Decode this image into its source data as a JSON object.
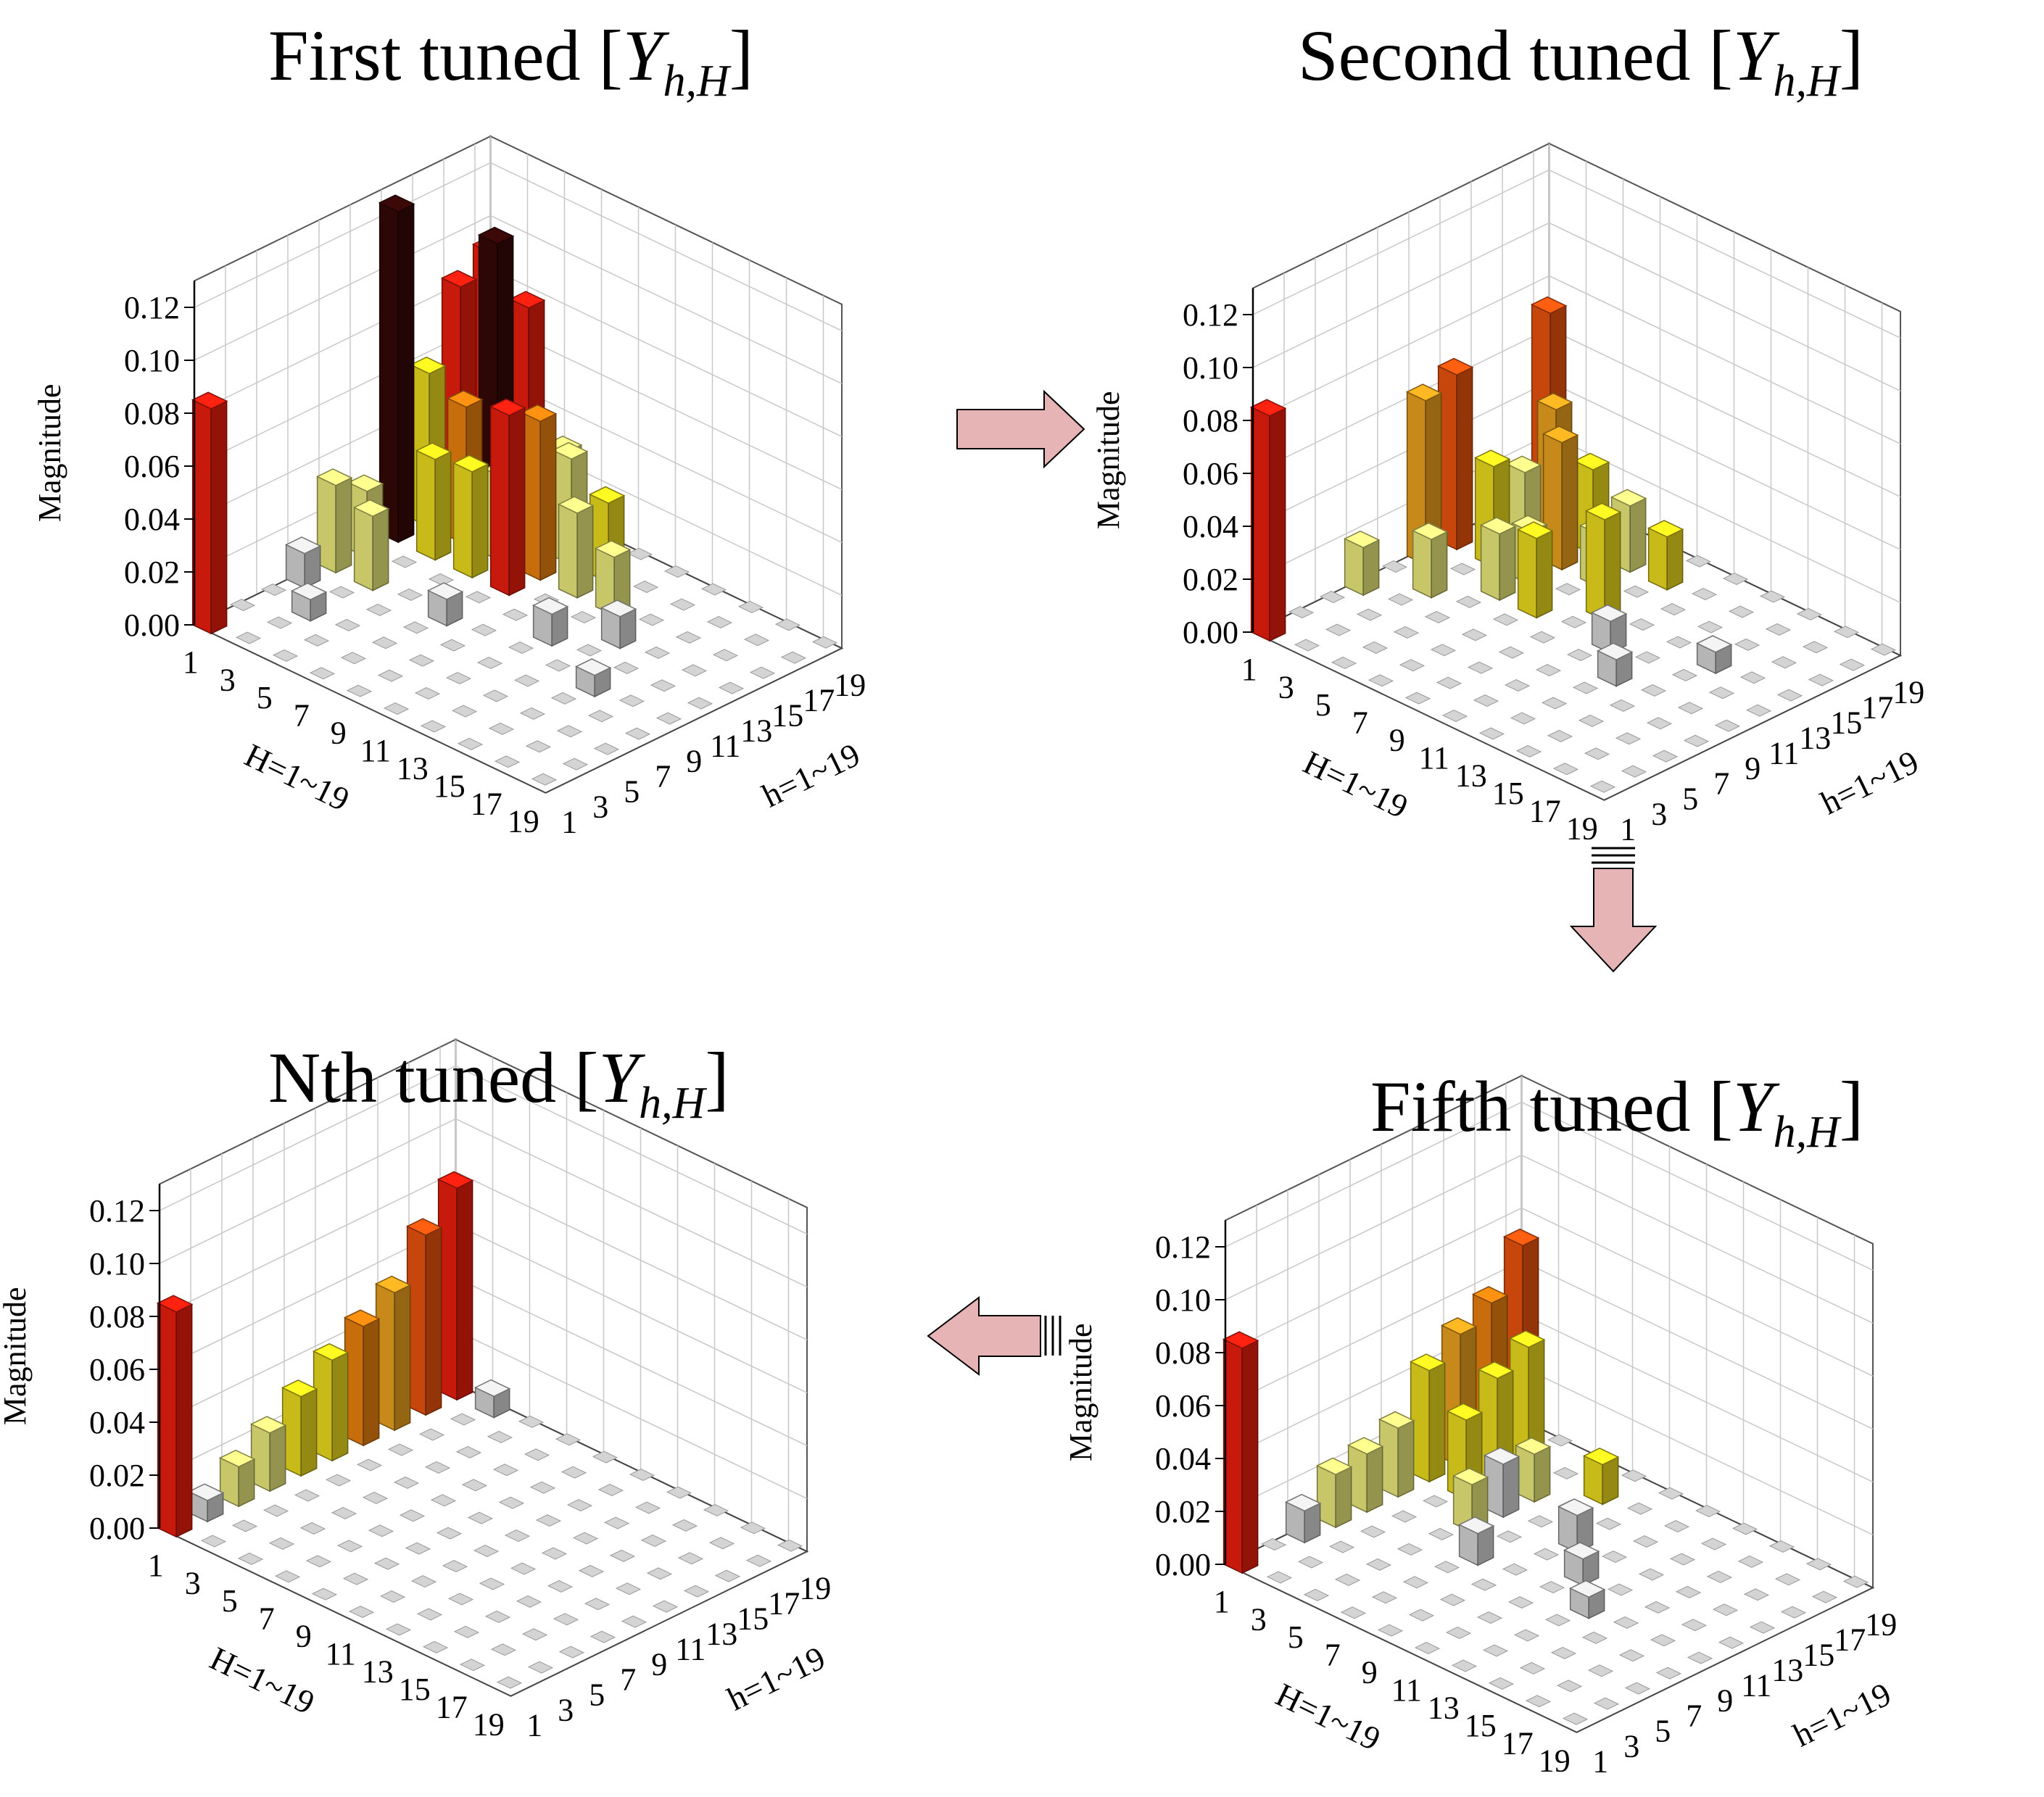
{
  "figure": {
    "description_note": "Four 3D bar charts of harmonic cross-coupling admittance magnitudes across tuning iterations",
    "arrows": [
      {
        "name": "first-to-second",
        "direction": "right"
      },
      {
        "name": "second-to-fifth",
        "direction": "down"
      },
      {
        "name": "fifth-to-nth",
        "direction": "left"
      }
    ],
    "colors": {
      "red": "#ff2010",
      "dark": "#3a0808",
      "orange": "#ff8c10",
      "orange_red": "#ff5a10",
      "amber": "#ffb020",
      "yellow": "#ffee20",
      "light_yellow": "#ffff88",
      "gray": "#e8e8e8"
    }
  },
  "chart_data": [
    {
      "id": "first",
      "type": "bar3d",
      "title_main": "First tuned [",
      "title_var": "Y",
      "title_sub": "h,H",
      "title_close": "]",
      "zlabel": "Magnitude",
      "xlabel": "H=1~19",
      "ylabel": "h=1~19",
      "zlim": [
        0,
        0.13
      ],
      "zticks": [
        "0.00",
        "0.02",
        "0.04",
        "0.06",
        "0.08",
        "0.10",
        "0.12"
      ],
      "xticks": [
        "1",
        "3",
        "5",
        "7",
        "9",
        "11",
        "13",
        "15",
        "17",
        "19"
      ],
      "yticks": [
        "1",
        "3",
        "5",
        "7",
        "9",
        "11",
        "13",
        "15",
        "17",
        "19"
      ],
      "bars": [
        {
          "H": 1,
          "h": 1,
          "value": 0.085,
          "color": "red"
        },
        {
          "H": 1,
          "h": 7,
          "value": 0.013,
          "color": "gray"
        },
        {
          "H": 1,
          "h": 9,
          "value": 0.033,
          "color": "light_yellow"
        },
        {
          "H": 1,
          "h": 11,
          "value": 0.025,
          "color": "light_yellow"
        },
        {
          "H": 1,
          "h": 13,
          "value": 0.125,
          "color": "dark"
        },
        {
          "H": 1,
          "h": 15,
          "value": 0.058,
          "color": "yellow"
        },
        {
          "H": 1,
          "h": 17,
          "value": 0.085,
          "color": "red"
        },
        {
          "H": 1,
          "h": 19,
          "value": 0.092,
          "color": "red"
        },
        {
          "H": 3,
          "h": 5,
          "value": 0.008,
          "color": "gray"
        },
        {
          "H": 3,
          "h": 9,
          "value": 0.028,
          "color": "light_yellow"
        },
        {
          "H": 3,
          "h": 13,
          "value": 0.038,
          "color": "yellow"
        },
        {
          "H": 3,
          "h": 15,
          "value": 0.052,
          "color": "orange"
        },
        {
          "H": 3,
          "h": 17,
          "value": 0.108,
          "color": "dark"
        },
        {
          "H": 3,
          "h": 19,
          "value": 0.078,
          "color": "red"
        },
        {
          "H": 5,
          "h": 13,
          "value": 0.04,
          "color": "yellow"
        },
        {
          "H": 5,
          "h": 15,
          "value": 0.032,
          "color": "light_yellow"
        },
        {
          "H": 5,
          "h": 17,
          "value": 0.028,
          "color": "light_yellow"
        },
        {
          "H": 5,
          "h": 19,
          "value": 0.03,
          "color": "light_yellow"
        },
        {
          "H": 7,
          "h": 9,
          "value": 0.01,
          "color": "gray"
        },
        {
          "H": 7,
          "h": 13,
          "value": 0.068,
          "color": "red"
        },
        {
          "H": 7,
          "h": 15,
          "value": 0.06,
          "color": "orange"
        },
        {
          "H": 7,
          "h": 17,
          "value": 0.04,
          "color": "light_yellow"
        },
        {
          "H": 9,
          "h": 15,
          "value": 0.032,
          "color": "light_yellow"
        },
        {
          "H": 9,
          "h": 17,
          "value": 0.03,
          "color": "yellow"
        },
        {
          "H": 11,
          "h": 11,
          "value": 0.012,
          "color": "gray"
        },
        {
          "H": 11,
          "h": 15,
          "value": 0.022,
          "color": "light_yellow"
        },
        {
          "H": 13,
          "h": 13,
          "value": 0.012,
          "color": "gray"
        },
        {
          "H": 15,
          "h": 9,
          "value": 0.008,
          "color": "gray"
        }
      ]
    },
    {
      "id": "second",
      "type": "bar3d",
      "title_main": "Second tuned [",
      "title_var": "Y",
      "title_sub": "h,H",
      "title_close": "]",
      "zlabel": "Magnitude",
      "xlabel": "H=1~19",
      "ylabel": "h=1~19",
      "zlim": [
        0,
        0.13
      ],
      "zticks": [
        "0.00",
        "0.02",
        "0.04",
        "0.06",
        "0.08",
        "0.10",
        "0.12"
      ],
      "xticks": [
        "1",
        "3",
        "5",
        "7",
        "9",
        "11",
        "13",
        "15",
        "17",
        "19"
      ],
      "yticks": [
        "1",
        "3",
        "5",
        "7",
        "9",
        "11",
        "13",
        "15",
        "17",
        "19"
      ],
      "bars": [
        {
          "H": 1,
          "h": 1,
          "value": 0.085,
          "color": "red"
        },
        {
          "H": 1,
          "h": 7,
          "value": 0.018,
          "color": "light_yellow"
        },
        {
          "H": 1,
          "h": 11,
          "value": 0.062,
          "color": "amber"
        },
        {
          "H": 1,
          "h": 13,
          "value": 0.066,
          "color": "orange_red"
        },
        {
          "H": 1,
          "h": 19,
          "value": 0.072,
          "color": "orange_red"
        },
        {
          "H": 3,
          "h": 9,
          "value": 0.022,
          "color": "light_yellow"
        },
        {
          "H": 3,
          "h": 13,
          "value": 0.038,
          "color": "yellow"
        },
        {
          "H": 3,
          "h": 15,
          "value": 0.03,
          "color": "light_yellow"
        },
        {
          "H": 3,
          "h": 17,
          "value": 0.048,
          "color": "amber"
        },
        {
          "H": 5,
          "h": 11,
          "value": 0.025,
          "color": "light_yellow"
        },
        {
          "H": 5,
          "h": 13,
          "value": 0.02,
          "color": "light_yellow"
        },
        {
          "H": 5,
          "h": 15,
          "value": 0.048,
          "color": "amber"
        },
        {
          "H": 5,
          "h": 17,
          "value": 0.032,
          "color": "yellow"
        },
        {
          "H": 7,
          "h": 11,
          "value": 0.03,
          "color": "yellow"
        },
        {
          "H": 7,
          "h": 15,
          "value": 0.02,
          "color": "light_yellow"
        },
        {
          "H": 7,
          "h": 17,
          "value": 0.025,
          "color": "light_yellow"
        },
        {
          "H": 9,
          "h": 13,
          "value": 0.038,
          "color": "yellow"
        },
        {
          "H": 9,
          "h": 17,
          "value": 0.02,
          "color": "yellow"
        },
        {
          "H": 11,
          "h": 11,
          "value": 0.012,
          "color": "gray"
        },
        {
          "H": 13,
          "h": 9,
          "value": 0.01,
          "color": "gray"
        },
        {
          "H": 15,
          "h": 13,
          "value": 0.008,
          "color": "gray"
        }
      ]
    },
    {
      "id": "fifth",
      "type": "bar3d",
      "title_main": "Fifth tuned [",
      "title_var": "Y",
      "title_sub": "h,H",
      "title_close": "]",
      "zlabel": "Magnitude",
      "xlabel": "H=1~19",
      "ylabel": "h=1~19",
      "zlim": [
        0,
        0.13
      ],
      "zticks": [
        "0.00",
        "0.02",
        "0.04",
        "0.06",
        "0.08",
        "0.10",
        "0.12"
      ],
      "xticks": [
        "1",
        "3",
        "5",
        "7",
        "9",
        "11",
        "13",
        "15",
        "17",
        "19"
      ],
      "yticks": [
        "1",
        "3",
        "5",
        "7",
        "9",
        "11",
        "13",
        "15",
        "17",
        "19"
      ],
      "bars": [
        {
          "H": 1,
          "h": 1,
          "value": 0.085,
          "color": "red"
        },
        {
          "H": 1,
          "h": 5,
          "value": 0.012,
          "color": "gray"
        },
        {
          "H": 1,
          "h": 7,
          "value": 0.02,
          "color": "light_yellow"
        },
        {
          "H": 1,
          "h": 9,
          "value": 0.022,
          "color": "light_yellow"
        },
        {
          "H": 1,
          "h": 11,
          "value": 0.026,
          "color": "light_yellow"
        },
        {
          "H": 1,
          "h": 13,
          "value": 0.042,
          "color": "yellow"
        },
        {
          "H": 1,
          "h": 15,
          "value": 0.05,
          "color": "amber"
        },
        {
          "H": 1,
          "h": 17,
          "value": 0.056,
          "color": "orange"
        },
        {
          "H": 1,
          "h": 19,
          "value": 0.072,
          "color": "orange_red"
        },
        {
          "H": 3,
          "h": 13,
          "value": 0.03,
          "color": "yellow"
        },
        {
          "H": 3,
          "h": 15,
          "value": 0.04,
          "color": "yellow"
        },
        {
          "H": 3,
          "h": 17,
          "value": 0.046,
          "color": "yellow"
        },
        {
          "H": 5,
          "h": 11,
          "value": 0.018,
          "color": "light_yellow"
        },
        {
          "H": 5,
          "h": 13,
          "value": 0.02,
          "color": "gray"
        },
        {
          "H": 5,
          "h": 15,
          "value": 0.018,
          "color": "light_yellow"
        },
        {
          "H": 7,
          "h": 9,
          "value": 0.012,
          "color": "gray"
        },
        {
          "H": 7,
          "h": 17,
          "value": 0.015,
          "color": "yellow"
        },
        {
          "H": 9,
          "h": 13,
          "value": 0.014,
          "color": "gray"
        },
        {
          "H": 11,
          "h": 11,
          "value": 0.01,
          "color": "gray"
        },
        {
          "H": 13,
          "h": 9,
          "value": 0.008,
          "color": "gray"
        }
      ]
    },
    {
      "id": "nth",
      "type": "bar3d",
      "title_main": "Nth tuned [",
      "title_var": "Y",
      "title_sub": "h,H",
      "title_close": "]",
      "zlabel": "Magnitude",
      "xlabel": "H=1~19",
      "ylabel": "h=1~19",
      "zlim": [
        0,
        0.13
      ],
      "zticks": [
        "0.00",
        "0.02",
        "0.04",
        "0.06",
        "0.08",
        "0.10",
        "0.12"
      ],
      "xticks": [
        "1",
        "3",
        "5",
        "7",
        "9",
        "11",
        "13",
        "15",
        "17",
        "19"
      ],
      "yticks": [
        "1",
        "3",
        "5",
        "7",
        "9",
        "11",
        "13",
        "15",
        "17",
        "19"
      ],
      "bars": [
        {
          "H": 1,
          "h": 1,
          "value": 0.085,
          "color": "red"
        },
        {
          "H": 1,
          "h": 3,
          "value": 0.008,
          "color": "gray"
        },
        {
          "H": 1,
          "h": 5,
          "value": 0.015,
          "color": "light_yellow"
        },
        {
          "H": 1,
          "h": 7,
          "value": 0.022,
          "color": "light_yellow"
        },
        {
          "H": 1,
          "h": 9,
          "value": 0.03,
          "color": "yellow"
        },
        {
          "H": 1,
          "h": 11,
          "value": 0.038,
          "color": "yellow"
        },
        {
          "H": 1,
          "h": 13,
          "value": 0.045,
          "color": "orange"
        },
        {
          "H": 1,
          "h": 15,
          "value": 0.052,
          "color": "amber"
        },
        {
          "H": 1,
          "h": 17,
          "value": 0.068,
          "color": "orange_red"
        },
        {
          "H": 1,
          "h": 19,
          "value": 0.08,
          "color": "red"
        },
        {
          "H": 3,
          "h": 19,
          "value": 0.008,
          "color": "gray"
        }
      ]
    }
  ]
}
